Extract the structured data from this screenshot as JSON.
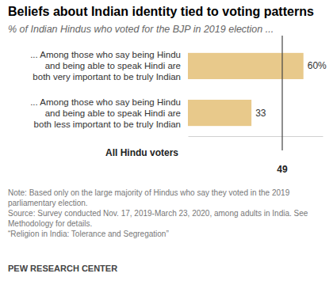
{
  "chart_data": {
    "type": "bar",
    "orientation": "horizontal",
    "title": "Beliefs about Indian identity tied to voting patterns",
    "subtitle": "% of Indian Hindus who voted for the BJP in 2019 election ...",
    "categories": [
      "... Among those who say being Hindu and being able to speak Hindi are both very important to be truly Indian",
      "... Among those who say being Hindu and being able to speak Hindi are both less important to be truly Indian"
    ],
    "values": [
      60,
      33
    ],
    "value_labels": [
      "60%",
      "33"
    ],
    "data_labels": true,
    "color": "#e8c98b",
    "xlim": [
      0,
      70
    ],
    "xticks": [],
    "tick_labels": false,
    "grid": false,
    "reference": {
      "label": "All Hindu voters",
      "value": 49
    },
    "notes": [
      "Note: Based only on the large majority of Hindus who say they voted in the 2019 parliamentary election.",
      "Source: Survey conducted Nov. 17, 2019-March 23, 2020, among adults in India. See Methodology for details.",
      "“Religion in India: Tolerance and Segregation”"
    ],
    "credit": "PEW RESEARCH CENTER"
  }
}
